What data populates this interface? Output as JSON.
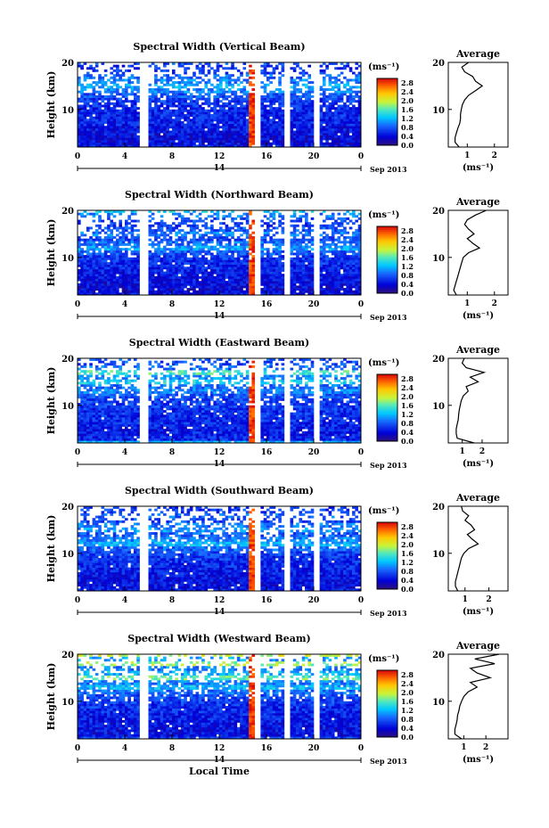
{
  "figure": {
    "date_label": "Sep 2013",
    "day_label": "14",
    "bottom_xlabel": "Local Time",
    "ylabel": "Height (km)",
    "colorbar_unit": "(ms⁻¹)",
    "colorbar_ticks": [
      "2.8",
      "2.4",
      "2.0",
      "1.6",
      "1.2",
      "0.8",
      "0.4",
      "0.0"
    ],
    "avg_title": "Average",
    "avg_xlabel": "(ms⁻¹)"
  },
  "chart_data": [
    {
      "type": "heatmap",
      "title": "Spectral Width (Vertical Beam)",
      "xlabel": "",
      "ylabel": "Height (km)",
      "xlim": [
        0,
        24
      ],
      "ylim": [
        2,
        20
      ],
      "xticks": [
        "0",
        "4",
        "8",
        "12",
        "16",
        "20",
        "0"
      ],
      "yticks": [
        "20",
        "10"
      ],
      "data_gaps_hours": [
        [
          5.2,
          6.0
        ],
        [
          15.0,
          15.5
        ],
        [
          17.4,
          18.0
        ],
        [
          19.9,
          20.5
        ]
      ],
      "colorbar": {
        "label": "(ms⁻¹)",
        "min": 0.0,
        "max": 3.0,
        "ticks": [
          0.0,
          0.4,
          0.8,
          1.2,
          1.6,
          2.0,
          2.4,
          2.8
        ]
      },
      "average_profile": {
        "title": "Average",
        "xlabel": "(ms⁻¹)",
        "xticks": [
          "1",
          "2"
        ],
        "xlim": [
          0.3,
          2.5
        ],
        "yticks": [
          "20",
          "10"
        ],
        "height_km": [
          2,
          3,
          4,
          5,
          6,
          7,
          8,
          9,
          10,
          11,
          12,
          13,
          14,
          15,
          16,
          17,
          18,
          19,
          20
        ],
        "width_ms": [
          0.7,
          0.55,
          0.55,
          0.6,
          0.65,
          0.72,
          0.75,
          0.75,
          0.78,
          0.82,
          0.9,
          1.05,
          1.3,
          1.55,
          1.3,
          1.2,
          0.9,
          0.8,
          1.05
        ]
      }
    },
    {
      "type": "heatmap",
      "title": "Spectral Width (Northward Beam)",
      "xlabel": "",
      "ylabel": "Height (km)",
      "xlim": [
        0,
        24
      ],
      "ylim": [
        2,
        20
      ],
      "xticks": [
        "0",
        "4",
        "8",
        "12",
        "16",
        "20",
        "0"
      ],
      "yticks": [
        "20",
        "10"
      ],
      "data_gaps_hours": [
        [
          5.2,
          6.0
        ],
        [
          15.0,
          15.5
        ],
        [
          17.4,
          18.0
        ],
        [
          19.9,
          20.5
        ]
      ],
      "colorbar": {
        "label": "(ms⁻¹)",
        "min": 0.0,
        "max": 3.0,
        "ticks": [
          0.0,
          0.4,
          0.8,
          1.2,
          1.6,
          2.0,
          2.4,
          2.8
        ]
      },
      "average_profile": {
        "title": "Average",
        "xlabel": "(ms⁻¹)",
        "xticks": [
          "1",
          "2"
        ],
        "xlim": [
          0.3,
          2.5
        ],
        "yticks": [
          "20",
          "10"
        ],
        "height_km": [
          2,
          3,
          4,
          5,
          6,
          7,
          8,
          9,
          10,
          11,
          12,
          13,
          14,
          15,
          16,
          17,
          18,
          19,
          20
        ],
        "width_ms": [
          0.6,
          0.5,
          0.55,
          0.6,
          0.65,
          0.7,
          0.75,
          0.8,
          0.85,
          1.05,
          1.45,
          1.2,
          1.0,
          1.25,
          1.05,
          0.9,
          1.0,
          1.3,
          1.7
        ]
      }
    },
    {
      "type": "heatmap",
      "title": "Spectral Width (Eastward Beam)",
      "xlabel": "",
      "ylabel": "Height (km)",
      "xlim": [
        0,
        24
      ],
      "ylim": [
        2,
        20
      ],
      "xticks": [
        "0",
        "4",
        "8",
        "12",
        "16",
        "20",
        "0"
      ],
      "yticks": [
        "20",
        "10"
      ],
      "data_gaps_hours": [
        [
          5.2,
          6.0
        ],
        [
          15.0,
          15.5
        ],
        [
          17.4,
          18.0
        ],
        [
          19.9,
          20.5
        ]
      ],
      "colorbar": {
        "label": "(ms⁻¹)",
        "min": 0.0,
        "max": 3.0,
        "ticks": [
          0.0,
          0.4,
          0.8,
          1.2,
          1.6,
          2.0,
          2.4,
          2.8
        ]
      },
      "average_profile": {
        "title": "Average",
        "xlabel": "(ms⁻¹)",
        "xticks": [
          "1",
          "2"
        ],
        "xlim": [
          0.3,
          3.3
        ],
        "yticks": [
          "20",
          "10"
        ],
        "height_km": [
          2,
          3,
          4,
          5,
          6,
          7,
          8,
          9,
          10,
          11,
          12,
          13,
          14,
          15,
          16,
          17,
          18,
          19,
          20
        ],
        "width_ms": [
          1.6,
          0.75,
          0.7,
          0.7,
          0.75,
          0.8,
          0.82,
          0.85,
          0.9,
          0.95,
          1.05,
          1.3,
          1.2,
          1.8,
          1.4,
          2.1,
          1.2,
          1.0,
          1.1
        ]
      }
    },
    {
      "type": "heatmap",
      "title": "Spectral Width (Southward Beam)",
      "xlabel": "",
      "ylabel": "Height (km)",
      "xlim": [
        0,
        24
      ],
      "ylim": [
        2,
        20
      ],
      "xticks": [
        "0",
        "4",
        "8",
        "12",
        "16",
        "20",
        "0"
      ],
      "yticks": [
        "20",
        "10"
      ],
      "data_gaps_hours": [
        [
          5.2,
          6.0
        ],
        [
          15.0,
          15.5
        ],
        [
          17.4,
          18.0
        ],
        [
          19.9,
          20.5
        ]
      ],
      "colorbar": {
        "label": "(ms⁻¹)",
        "min": 0.0,
        "max": 3.0,
        "ticks": [
          0.0,
          0.4,
          0.8,
          1.2,
          1.6,
          2.0,
          2.4,
          2.8
        ]
      },
      "average_profile": {
        "title": "Average",
        "xlabel": "(ms⁻¹)",
        "xticks": [
          "1",
          "2"
        ],
        "xlim": [
          0.3,
          2.8
        ],
        "yticks": [
          "20",
          "10"
        ],
        "height_km": [
          2,
          3,
          4,
          5,
          6,
          7,
          8,
          9,
          10,
          11,
          12,
          13,
          14,
          15,
          16,
          17,
          18,
          19,
          20
        ],
        "width_ms": [
          0.7,
          0.6,
          0.6,
          0.65,
          0.7,
          0.75,
          0.8,
          0.85,
          0.95,
          1.15,
          1.55,
          1.3,
          1.1,
          1.4,
          1.25,
          1.0,
          1.15,
          0.9,
          0.85
        ]
      }
    },
    {
      "type": "heatmap",
      "title": "Spectral Width (Westward Beam)",
      "xlabel": "Local Time",
      "ylabel": "Height (km)",
      "xlim": [
        0,
        24
      ],
      "ylim": [
        2,
        20
      ],
      "xticks": [
        "0",
        "4",
        "8",
        "12",
        "16",
        "20",
        "0"
      ],
      "yticks": [
        "20",
        "10"
      ],
      "data_gaps_hours": [
        [
          5.2,
          6.0
        ],
        [
          15.0,
          15.5
        ],
        [
          17.4,
          18.0
        ],
        [
          19.9,
          20.5
        ]
      ],
      "colorbar": {
        "label": "(ms⁻¹)",
        "min": 0.0,
        "max": 3.0,
        "ticks": [
          0.0,
          0.4,
          0.8,
          1.2,
          1.6,
          2.0,
          2.4,
          2.8
        ]
      },
      "average_profile": {
        "title": "Average",
        "xlabel": "(ms⁻¹)",
        "xticks": [
          "1",
          "2"
        ],
        "xlim": [
          0.3,
          3.0
        ],
        "yticks": [
          "20",
          "10"
        ],
        "height_km": [
          2,
          3,
          4,
          5,
          6,
          7,
          8,
          9,
          10,
          11,
          12,
          13,
          14,
          15,
          16,
          17,
          18,
          19,
          20
        ],
        "width_ms": [
          0.9,
          0.6,
          0.6,
          0.65,
          0.7,
          0.72,
          0.78,
          0.82,
          0.9,
          1.0,
          1.2,
          1.6,
          1.3,
          2.2,
          1.6,
          1.3,
          2.4,
          1.5,
          2.6
        ]
      }
    }
  ]
}
